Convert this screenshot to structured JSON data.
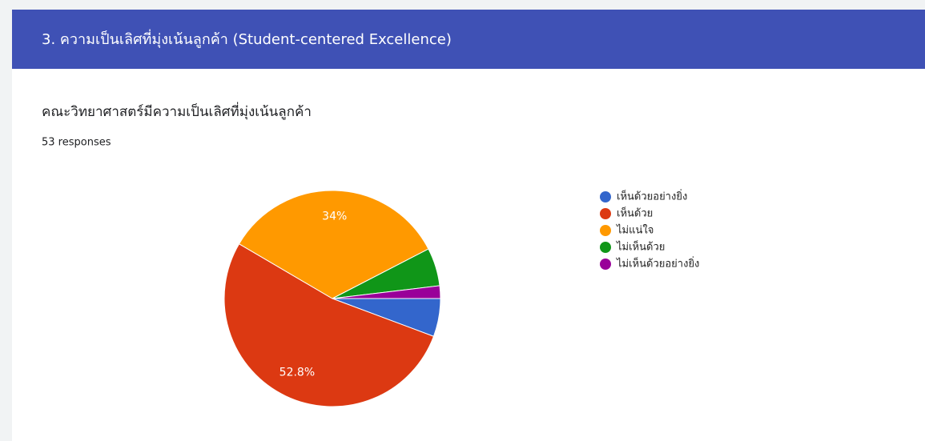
{
  "section_title": "3. ความเป็นเลิศที่มุ่งเน้นลูกค้า (Student-centered Excellence)",
  "chart_data": {
    "type": "pie",
    "title": "คณะวิทยาศาสตร์มีความเป็นเลิศที่มุ่งเน้นลูกค้า",
    "subtitle": "53 responses",
    "categories": [
      "เห็นด้วยอย่างยิ่ง",
      "เห็นด้วย",
      "ไม่แน่ใจ",
      "ไม่เห็นด้วย",
      "ไม่เห็นด้วยอย่างยิ่ง"
    ],
    "values": [
      5.7,
      52.8,
      34,
      5.7,
      1.9
    ],
    "value_labels": [
      null,
      "52.8%",
      "34%",
      null,
      null
    ],
    "colors": [
      "#3366cc",
      "#dc3912",
      "#ff9900",
      "#109618",
      "#990099"
    ],
    "legend": "right"
  }
}
